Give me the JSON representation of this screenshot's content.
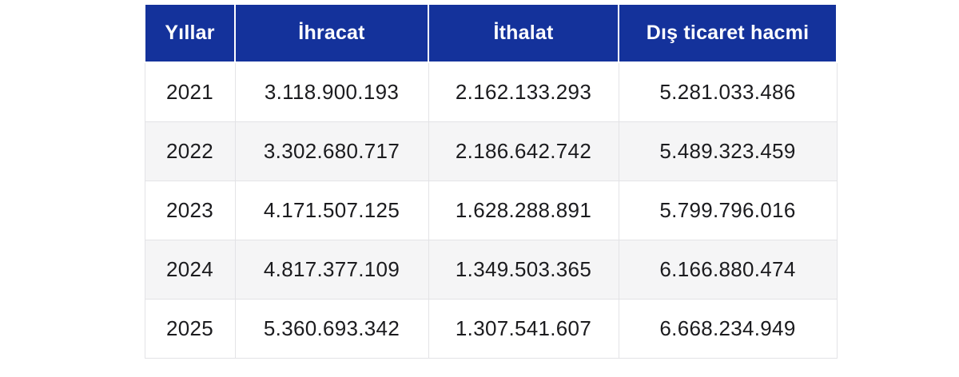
{
  "table": {
    "columns": [
      {
        "key": "yillar",
        "label": "Yıllar"
      },
      {
        "key": "ihracat",
        "label": "İhracat"
      },
      {
        "key": "ithalat",
        "label": "İthalat"
      },
      {
        "key": "dis_ticaret_hacmi",
        "label": "Dış ticaret hacmi"
      }
    ],
    "rows": [
      [
        "2021",
        "3.118.900.193",
        "2.162.133.293",
        "5.281.033.486"
      ],
      [
        "2022",
        "3.302.680.717",
        "2.186.642.742",
        "5.489.323.459"
      ],
      [
        "2023",
        "4.171.507.125",
        "1.628.288.891",
        "5.799.796.016"
      ],
      [
        "2024",
        "4.817.377.109",
        "1.349.503.365",
        "6.166.880.474"
      ],
      [
        "2025",
        "5.360.693.342",
        "1.307.541.607",
        "6.668.234.949"
      ]
    ]
  },
  "chart_data": {
    "type": "table",
    "title": "",
    "columns": [
      "Yıllar",
      "İhracat",
      "İthalat",
      "Dış ticaret hacmi"
    ],
    "categories": [
      "2021",
      "2022",
      "2023",
      "2024",
      "2025"
    ],
    "series": [
      {
        "name": "İhracat",
        "values": [
          3118900193,
          3302680717,
          4171507125,
          4817377109,
          5360693342
        ]
      },
      {
        "name": "İthalat",
        "values": [
          2162133293,
          2186642742,
          1628288891,
          1349503365,
          1307541607
        ]
      },
      {
        "name": "Dış ticaret hacmi",
        "values": [
          5281033486,
          5489323459,
          5799796016,
          6166880474,
          6668234949
        ]
      }
    ]
  },
  "colors": {
    "header_bg": "#14329b",
    "header_text": "#ffffff",
    "row_bg": "#ffffff",
    "row_alt_bg": "#f5f5f6",
    "border": "#e3e3e6",
    "body_text": "#1b1b1e",
    "page_bg": "#ffffff"
  }
}
